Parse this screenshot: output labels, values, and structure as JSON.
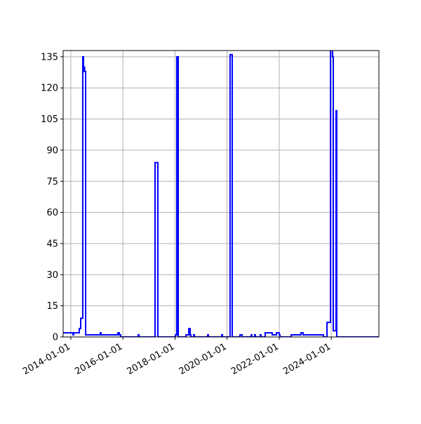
{
  "chart_data": {
    "type": "line",
    "step": "post",
    "title": "",
    "xlabel": "",
    "ylabel": "",
    "x_type": "date",
    "xlim": [
      "2013-09-15",
      "2025-10-30"
    ],
    "ylim": [
      0,
      138
    ],
    "grid": true,
    "line_color": "#0000ff",
    "grid_color": "#b0b0b0",
    "x_ticks": [
      "2014-01-01",
      "2016-01-01",
      "2018-01-01",
      "2020-01-01",
      "2022-01-01",
      "2024-01-01"
    ],
    "y_ticks": [
      0,
      15,
      30,
      45,
      60,
      75,
      90,
      105,
      120,
      135
    ],
    "series": [
      {
        "points": [
          [
            "2013-09-15",
            2
          ],
          [
            "2014-01-31",
            1
          ],
          [
            "2014-02-09",
            2
          ],
          [
            "2014-04-29",
            4
          ],
          [
            "2014-05-19",
            9
          ],
          [
            "2014-06-17",
            135
          ],
          [
            "2014-06-27",
            128
          ],
          [
            "2014-07-07",
            130
          ],
          [
            "2014-07-12",
            128
          ],
          [
            "2014-07-27",
            1
          ],
          [
            "2015-02-18",
            2
          ],
          [
            "2015-02-28",
            1
          ],
          [
            "2015-10-22",
            2
          ],
          [
            "2015-11-11",
            1
          ],
          [
            "2015-12-01",
            0
          ],
          [
            "2016-08-03",
            1
          ],
          [
            "2016-08-13",
            0
          ],
          [
            "2017-03-27",
            84
          ],
          [
            "2017-05-05",
            0
          ],
          [
            "2018-01-07",
            1
          ],
          [
            "2018-01-26",
            135
          ],
          [
            "2018-02-15",
            0
          ],
          [
            "2018-06-03",
            1
          ],
          [
            "2018-07-13",
            4
          ],
          [
            "2018-08-01",
            1
          ],
          [
            "2018-08-11",
            0
          ],
          [
            "2018-09-19",
            1
          ],
          [
            "2018-09-29",
            0
          ],
          [
            "2019-04-04",
            1
          ],
          [
            "2019-04-14",
            0
          ],
          [
            "2019-10-18",
            1
          ],
          [
            "2019-10-28",
            0
          ],
          [
            "2020-02-12",
            136
          ],
          [
            "2020-03-13",
            0
          ],
          [
            "2020-06-29",
            1
          ],
          [
            "2020-07-29",
            0
          ],
          [
            "2020-12-04",
            1
          ],
          [
            "2020-12-13",
            0
          ],
          [
            "2021-01-22",
            1
          ],
          [
            "2021-02-01",
            0
          ],
          [
            "2021-04-10",
            1
          ],
          [
            "2021-04-20",
            0
          ],
          [
            "2021-06-18",
            2
          ],
          [
            "2021-09-25",
            1
          ],
          [
            "2021-11-23",
            2
          ],
          [
            "2022-01-01",
            1
          ],
          [
            "2022-01-11",
            0
          ],
          [
            "2022-06-18",
            1
          ],
          [
            "2022-11-02",
            2
          ],
          [
            "2022-12-02",
            1
          ],
          [
            "2023-09-13",
            0
          ],
          [
            "2023-11-02",
            7
          ],
          [
            "2023-12-21",
            140
          ],
          [
            "2024-01-19",
            135
          ],
          [
            "2024-01-29",
            3
          ],
          [
            "2024-03-08",
            109
          ],
          [
            "2024-03-18",
            0
          ],
          [
            "2025-10-30",
            0
          ]
        ]
      }
    ]
  }
}
